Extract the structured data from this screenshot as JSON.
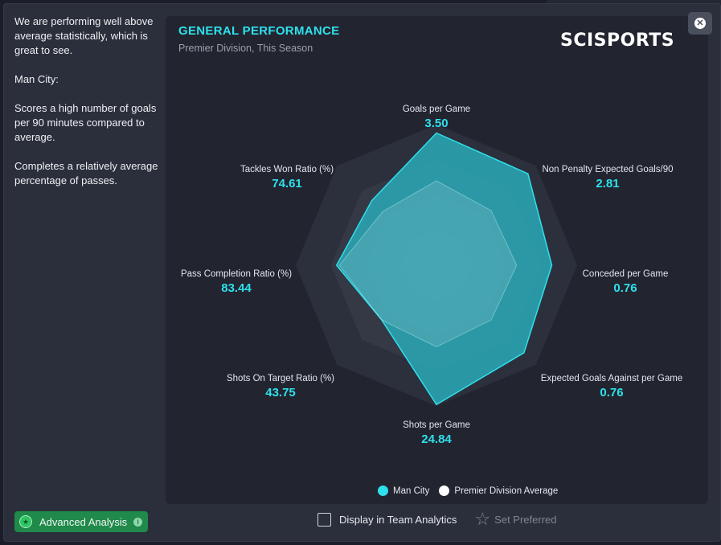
{
  "sidebar": {
    "paragraphs": [
      "We are performing well above average statistically, which is great to see.",
      "Man City:",
      "Scores a high number of goals per 90 minutes compared to average.",
      "Completes a relatively average percentage of passes."
    ],
    "advanced_button": "Advanced Analysis"
  },
  "panel": {
    "title": "GENERAL PERFORMANCE",
    "subtitle": "Premier Division, This Season",
    "logo": "SCISPORTS"
  },
  "bottom": {
    "display_checkbox_label": "Display in Team Analytics",
    "set_preferred_label": "Set Preferred"
  },
  "icons": {
    "close": "close-icon",
    "advanced": "star-badge-icon",
    "info": "info-icon",
    "preferred": "star-outline-icon"
  },
  "colors": {
    "accent": "#2ee0ec",
    "team_fill": "#2aa9b7",
    "average": "#ffffff",
    "button_green": "#1f8a4a"
  },
  "chart_data": {
    "type": "radar",
    "title": "GENERAL PERFORMANCE",
    "subtitle": "Premier Division, This Season",
    "axes": [
      {
        "label": "Goals per Game",
        "value": "3.50",
        "team": 0.94,
        "avg": 0.6
      },
      {
        "label": "Non Penalty Expected Goals/90",
        "value": "2.81",
        "team": 0.92,
        "avg": 0.55
      },
      {
        "label": "Conceded per Game",
        "value": "0.76",
        "team": 0.82,
        "avg": 0.57
      },
      {
        "label": "Expected Goals Against per Game",
        "value": "0.76",
        "team": 0.88,
        "avg": 0.55
      },
      {
        "label": "Shots per Game",
        "value": "24.84",
        "team": 0.99,
        "avg": 0.58
      },
      {
        "label": "Shots On Target Ratio (%)",
        "value": "43.75",
        "team": 0.55,
        "avg": 0.55
      },
      {
        "label": "Pass Completion Ratio (%)",
        "value": "83.44",
        "team": 0.71,
        "avg": 0.69
      },
      {
        "label": "Tackles Won Ratio (%)",
        "value": "74.61",
        "team": 0.65,
        "avg": 0.54
      }
    ],
    "legend": [
      {
        "name": "Man City",
        "color": "#2ee0ec"
      },
      {
        "name": "Premier Division Average",
        "color": "#ffffff"
      }
    ],
    "rings": 4
  }
}
